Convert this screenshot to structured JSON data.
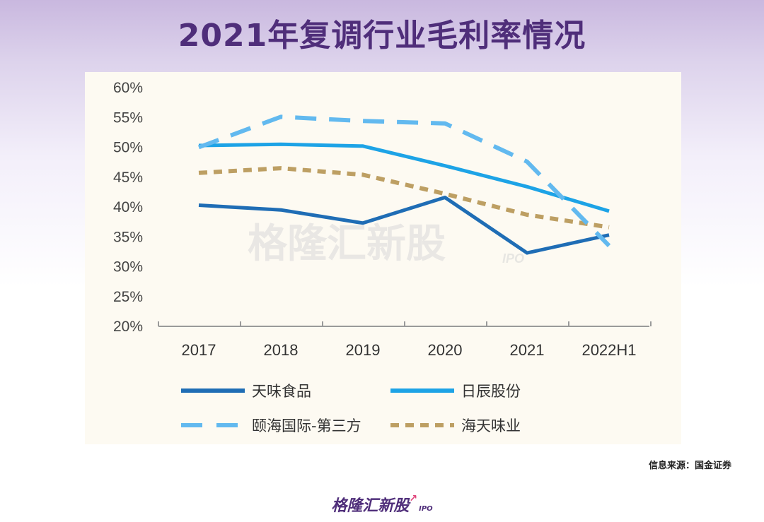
{
  "title": "2021年复调行业毛利率情况",
  "source": "信息来源：国金证券",
  "watermark": {
    "main": "格隆汇新股",
    "sub": "IPO"
  },
  "logo": {
    "main": "格隆汇新股",
    "sub": "IPO",
    "mark": "↗"
  },
  "chart_data": {
    "type": "line",
    "title": "2021年复调行业毛利率情况",
    "categories": [
      "2017",
      "2018",
      "2019",
      "2020",
      "2021",
      "2022H1"
    ],
    "yticks": [
      "20%",
      "25%",
      "30%",
      "35%",
      "40%",
      "45%",
      "50%",
      "55%",
      "60%"
    ],
    "ylim": [
      20,
      60
    ],
    "xlabel": "",
    "ylabel": "",
    "series": [
      {
        "name": "天味食品",
        "values": [
          40.3,
          39.5,
          37.3,
          41.6,
          32.3,
          35.3
        ],
        "color": "#1f6db5",
        "dash": "solid"
      },
      {
        "name": "日辰股份",
        "values": [
          50.3,
          50.5,
          50.2,
          46.9,
          43.4,
          39.3
        ],
        "color": "#1da3e6",
        "dash": "solid"
      },
      {
        "name": "颐海国际-第三方",
        "values": [
          50.0,
          55.1,
          54.4,
          54.0,
          47.6,
          33.5
        ],
        "color": "#62b9ef",
        "dash": "dash"
      },
      {
        "name": "海天味业",
        "values": [
          45.7,
          46.5,
          45.4,
          42.2,
          38.7,
          36.6
        ],
        "color": "#bd9f63",
        "dash": "dot"
      }
    ]
  }
}
